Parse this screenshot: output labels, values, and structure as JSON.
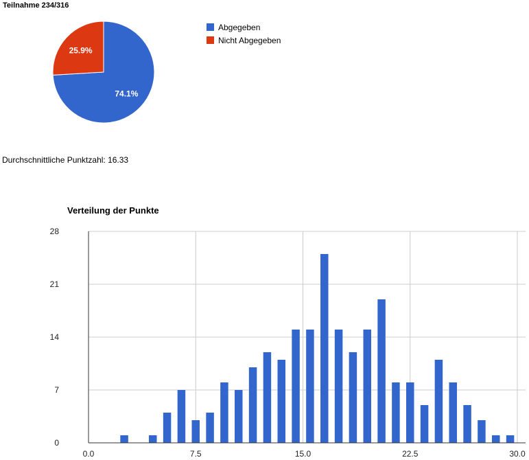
{
  "pie": {
    "title": "Teilnahme 234/316"
  },
  "stats": {
    "average_text": "Durchschnittliche Punktzahl: 16.33"
  },
  "histogram": {
    "title": "Verteilung der Punkte"
  },
  "chart_data": [
    {
      "type": "pie",
      "title": "Teilnahme 234/316",
      "legend_position": "right",
      "slices": [
        {
          "label": "Abgegeben",
          "value": 234,
          "percent_label": "74.1%",
          "color": "#3366cc"
        },
        {
          "label": "Nicht Abgegeben",
          "value": 82,
          "percent_label": "25.9%",
          "color": "#dc3912"
        }
      ]
    },
    {
      "type": "bar",
      "title": "Verteilung der Punkte",
      "color": "#3366cc",
      "grid": true,
      "xlim": [
        0,
        30
      ],
      "ylim": [
        0,
        28
      ],
      "xticks": [
        "0.0",
        "7.5",
        "15.0",
        "22.5",
        "30.0"
      ],
      "yticks": [
        "0",
        "7",
        "14",
        "21",
        "28"
      ],
      "x": [
        0,
        1,
        2,
        3,
        4,
        5,
        6,
        7,
        8,
        9,
        10,
        11,
        12,
        13,
        14,
        15,
        16,
        17,
        18,
        19,
        20,
        21,
        22,
        23,
        24,
        25,
        26,
        27,
        28,
        29
      ],
      "values": [
        0,
        0,
        1,
        0,
        1,
        4,
        7,
        3,
        4,
        8,
        7,
        10,
        12,
        11,
        15,
        15,
        25,
        15,
        12,
        15,
        19,
        8,
        8,
        5,
        11,
        8,
        5,
        3,
        1,
        1
      ]
    }
  ]
}
